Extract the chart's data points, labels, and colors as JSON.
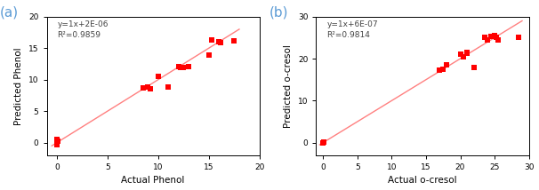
{
  "plot_a": {
    "label": "(a)",
    "scatter_x": [
      0,
      0,
      0.1,
      8.5,
      9.0,
      9.2,
      10.0,
      11.0,
      12.0,
      12.2,
      12.5,
      13.0,
      15.0,
      15.3,
      16.0,
      16.2,
      17.5
    ],
    "scatter_y": [
      -0.3,
      0.5,
      0.3,
      8.7,
      8.8,
      8.6,
      10.5,
      8.8,
      12.1,
      12.0,
      11.9,
      12.1,
      13.9,
      16.3,
      16.0,
      15.9,
      16.1
    ],
    "line_x": [
      -0.5,
      18
    ],
    "line_y": [
      -0.5,
      18
    ],
    "annotation": "y=1x+2E-06\nR²=0.9859",
    "xlabel": "Actual Phenol",
    "ylabel": "Predicted Phenol",
    "xlim": [
      -1,
      20
    ],
    "ylim": [
      -2,
      20
    ],
    "xticks": [
      0,
      5,
      10,
      15,
      20
    ],
    "yticks": [
      0,
      5,
      10,
      15,
      20
    ]
  },
  "plot_b": {
    "label": "(b)",
    "scatter_x": [
      0,
      0.1,
      17.0,
      17.5,
      18.0,
      20.0,
      20.5,
      21.0,
      21.0,
      22.0,
      23.5,
      24.0,
      24.5,
      25.0,
      25.2,
      25.5,
      28.5
    ],
    "scatter_y": [
      0,
      0.1,
      17.2,
      17.5,
      18.5,
      21.0,
      20.5,
      21.2,
      21.5,
      18.0,
      25.0,
      24.5,
      25.2,
      25.5,
      25.0,
      24.5,
      25.0
    ],
    "line_x": [
      -0.5,
      29
    ],
    "line_y": [
      -0.5,
      29
    ],
    "annotation": "y=1x+6E-07\nR²=0.9814",
    "xlabel": "Actual o-cresol",
    "ylabel": "Predicted o-cresol",
    "xlim": [
      -1,
      30
    ],
    "ylim": [
      -3,
      30
    ],
    "xticks": [
      0,
      5,
      10,
      15,
      20,
      25,
      30
    ],
    "yticks": [
      0,
      10,
      20,
      30
    ]
  },
  "marker_color": "#FF0000",
  "line_color": "#FF8080",
  "marker_size": 16,
  "annotation_fontsize": 6.5,
  "axis_label_fontsize": 7.5,
  "tick_fontsize": 6.5,
  "panel_label_fontsize": 11,
  "panel_label_color": "#5B9BD5",
  "line_width": 1.0,
  "line_style": "-"
}
